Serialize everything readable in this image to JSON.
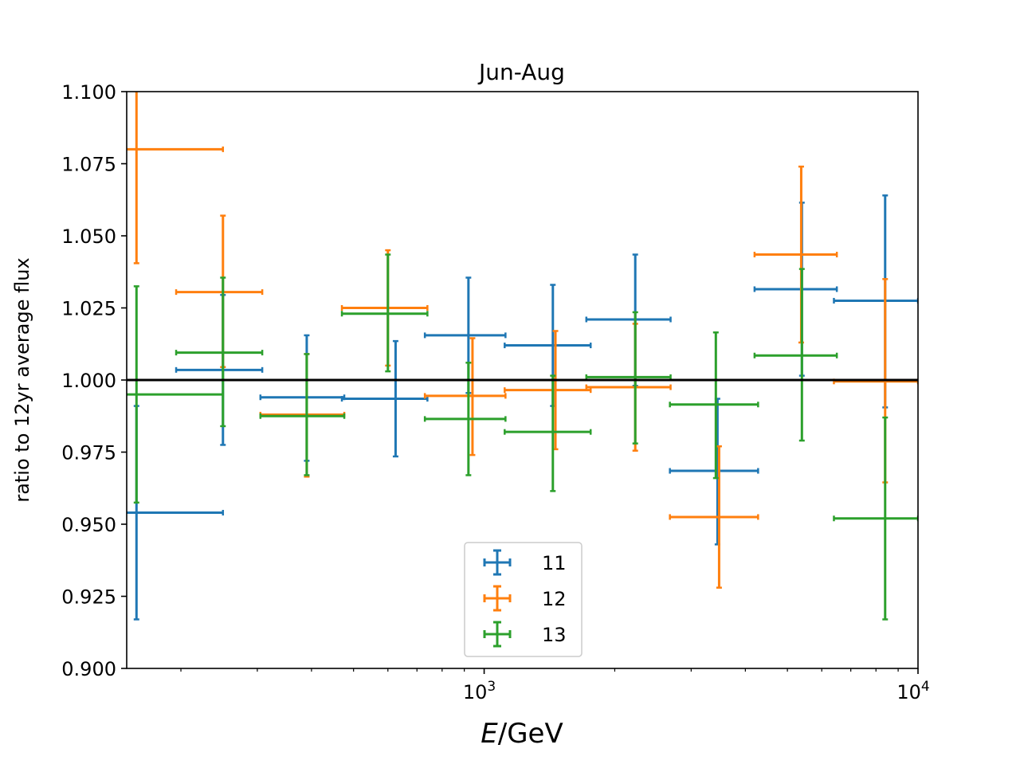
{
  "chart_data": {
    "type": "scatter",
    "title": "Jun-Aug",
    "xlabel_italic": "E",
    "xlabel_rest": "/GeV",
    "ylabel": "ratio to 12yr average flux",
    "x_scale": "log",
    "xlim": [
      150,
      10000
    ],
    "ylim": [
      0.9,
      1.1
    ],
    "yticks": [
      "0.900",
      "0.925",
      "0.950",
      "0.975",
      "1.000",
      "1.025",
      "1.050",
      "1.075",
      "1.100"
    ],
    "xtick_major_labels": [
      {
        "value": 1000,
        "base": "10",
        "exp": "3"
      },
      {
        "value": 10000,
        "base": "10",
        "exp": "4"
      }
    ],
    "reference_line": 1.0,
    "grid": false,
    "legend_location": "lower center",
    "series": [
      {
        "name": "11",
        "color": "#1f77b4",
        "points": [
          {
            "x": 158,
            "xlo": 100,
            "xhi": 250,
            "y": 0.954,
            "ylo": 0.917,
            "yhi": 0.991
          },
          {
            "x": 250,
            "xlo": 195,
            "xhi": 308,
            "y": 1.0035,
            "ylo": 0.9775,
            "yhi": 1.0295
          },
          {
            "x": 390,
            "xlo": 305,
            "xhi": 476,
            "y": 0.994,
            "ylo": 0.972,
            "yhi": 1.0155
          },
          {
            "x": 625,
            "xlo": 470,
            "xhi": 740,
            "y": 0.9935,
            "ylo": 0.9735,
            "yhi": 1.0135
          },
          {
            "x": 920,
            "xlo": 730,
            "xhi": 1120,
            "y": 1.0155,
            "ylo": 0.9955,
            "yhi": 1.0355
          },
          {
            "x": 1440,
            "xlo": 1115,
            "xhi": 1760,
            "y": 1.012,
            "ylo": 0.991,
            "yhi": 1.033
          },
          {
            "x": 2230,
            "xlo": 1720,
            "xhi": 2690,
            "y": 1.021,
            "ylo": 0.998,
            "yhi": 1.0435
          },
          {
            "x": 3450,
            "xlo": 2680,
            "xhi": 4280,
            "y": 0.9685,
            "ylo": 0.943,
            "yhi": 0.9935
          },
          {
            "x": 5400,
            "xlo": 4200,
            "xhi": 6500,
            "y": 1.0315,
            "ylo": 1.0015,
            "yhi": 1.0615
          },
          {
            "x": 8400,
            "xlo": 6400,
            "xhi": 10000,
            "y": 1.0275,
            "ylo": 0.9905,
            "yhi": 1.064
          }
        ]
      },
      {
        "name": "12",
        "color": "#ff7f0e",
        "points": [
          {
            "x": 158,
            "xlo": 100,
            "xhi": 250,
            "y": 1.08,
            "ylo": 1.0405,
            "yhi": 1.12
          },
          {
            "x": 250,
            "xlo": 195,
            "xhi": 308,
            "y": 1.0305,
            "ylo": 1.0045,
            "yhi": 1.057
          },
          {
            "x": 390,
            "xlo": 305,
            "xhi": 476,
            "y": 0.988,
            "ylo": 0.9665,
            "yhi": 1.009
          },
          {
            "x": 600,
            "xlo": 470,
            "xhi": 740,
            "y": 1.025,
            "ylo": 1.005,
            "yhi": 1.045
          },
          {
            "x": 940,
            "xlo": 730,
            "xhi": 1120,
            "y": 0.9945,
            "ylo": 0.974,
            "yhi": 1.0145
          },
          {
            "x": 1460,
            "xlo": 1115,
            "xhi": 1760,
            "y": 0.9965,
            "ylo": 0.976,
            "yhi": 1.017
          },
          {
            "x": 2230,
            "xlo": 1720,
            "xhi": 2690,
            "y": 0.9975,
            "ylo": 0.9755,
            "yhi": 1.0195
          },
          {
            "x": 3480,
            "xlo": 2680,
            "xhi": 4280,
            "y": 0.9525,
            "ylo": 0.928,
            "yhi": 0.977
          },
          {
            "x": 5380,
            "xlo": 4200,
            "xhi": 6500,
            "y": 1.0435,
            "ylo": 1.013,
            "yhi": 1.074
          },
          {
            "x": 8400,
            "xlo": 6400,
            "xhi": 10000,
            "y": 0.9995,
            "ylo": 0.9645,
            "yhi": 1.035
          }
        ]
      },
      {
        "name": "13",
        "color": "#2ca02c",
        "points": [
          {
            "x": 158,
            "xlo": 100,
            "xhi": 250,
            "y": 0.995,
            "ylo": 0.9575,
            "yhi": 1.0325
          },
          {
            "x": 250,
            "xlo": 195,
            "xhi": 308,
            "y": 1.0095,
            "ylo": 0.984,
            "yhi": 1.0355
          },
          {
            "x": 390,
            "xlo": 305,
            "xhi": 476,
            "y": 0.9875,
            "ylo": 0.967,
            "yhi": 1.009
          },
          {
            "x": 600,
            "xlo": 470,
            "xhi": 740,
            "y": 1.023,
            "ylo": 1.003,
            "yhi": 1.0435
          },
          {
            "x": 920,
            "xlo": 730,
            "xhi": 1120,
            "y": 0.9865,
            "ylo": 0.967,
            "yhi": 1.006
          },
          {
            "x": 1440,
            "xlo": 1115,
            "xhi": 1760,
            "y": 0.982,
            "ylo": 0.9615,
            "yhi": 1.0015
          },
          {
            "x": 2230,
            "xlo": 1720,
            "xhi": 2690,
            "y": 1.001,
            "ylo": 0.978,
            "yhi": 1.0235
          },
          {
            "x": 3420,
            "xlo": 2680,
            "xhi": 4280,
            "y": 0.9915,
            "ylo": 0.966,
            "yhi": 1.0165
          },
          {
            "x": 5400,
            "xlo": 4200,
            "xhi": 6500,
            "y": 1.0085,
            "ylo": 0.979,
            "yhi": 1.0385
          },
          {
            "x": 8400,
            "xlo": 6400,
            "xhi": 10000,
            "y": 0.952,
            "ylo": 0.917,
            "yhi": 0.987
          }
        ]
      }
    ]
  }
}
